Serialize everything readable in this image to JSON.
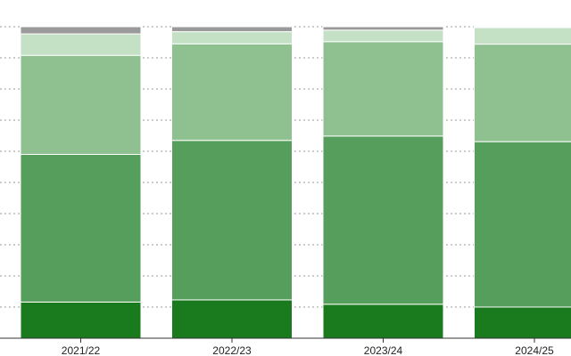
{
  "chart_data": {
    "type": "bar",
    "stacked": true,
    "normalized_percent": true,
    "title": "",
    "xlabel": "",
    "ylabel": "",
    "ylim": [
      0,
      100
    ],
    "grid": {
      "horizontal": true,
      "style": "dotted"
    },
    "legend": "none visible",
    "categories": [
      "2021/22",
      "2022/23",
      "2023/24",
      "2024/25"
    ],
    "series": [
      {
        "color": "#1a7a1e",
        "values": [
          11.6,
          12.3,
          10.9,
          10.0
        ]
      },
      {
        "color": "#559e5b",
        "values": [
          47.4,
          51.2,
          54.0,
          53.1
        ]
      },
      {
        "color": "#8fc08f",
        "values": [
          31.8,
          31.0,
          30.3,
          31.3
        ]
      },
      {
        "color": "#c4e1c5",
        "values": [
          6.9,
          3.9,
          3.7,
          5.3
        ]
      },
      {
        "color": "#9a9a9a",
        "values": [
          2.3,
          1.6,
          1.1,
          0.3
        ]
      }
    ]
  }
}
